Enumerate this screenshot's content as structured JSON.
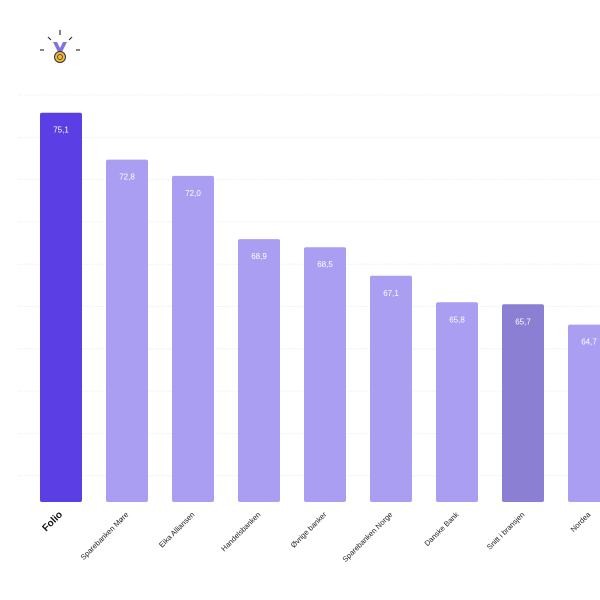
{
  "colors": {
    "highlight": "#5b3fe4",
    "default": "#aa9ef2",
    "average": "#8b7fd4",
    "gridline": "#e9e9ef",
    "value_text": "#ffffff",
    "medal_ribbon": "#8272e0",
    "medal_gold": "#f0b93a"
  },
  "icons": {
    "medal": "medal-icon"
  },
  "chart_data": {
    "type": "bar",
    "categories": [
      "Folio",
      "Sparebanken Møre",
      "Eika Alliansen",
      "Handelsbanken",
      "Øvrige banker",
      "Sparebanken Norge",
      "Danske Bank",
      "Snitt i bransjen",
      "Nordea"
    ],
    "values": [
      75.1,
      72.8,
      72.0,
      68.9,
      68.5,
      67.1,
      65.8,
      65.7,
      64.7
    ],
    "value_labels": [
      "75,1",
      "72,8",
      "72,0",
      "68,9",
      "68,5",
      "67,1",
      "65,8",
      "65,7",
      "64,7"
    ],
    "highlight_index": 0,
    "average_index": 7,
    "ylim": [
      56,
      77
    ],
    "grid": true,
    "title": "",
    "xlabel": "",
    "ylabel": ""
  }
}
